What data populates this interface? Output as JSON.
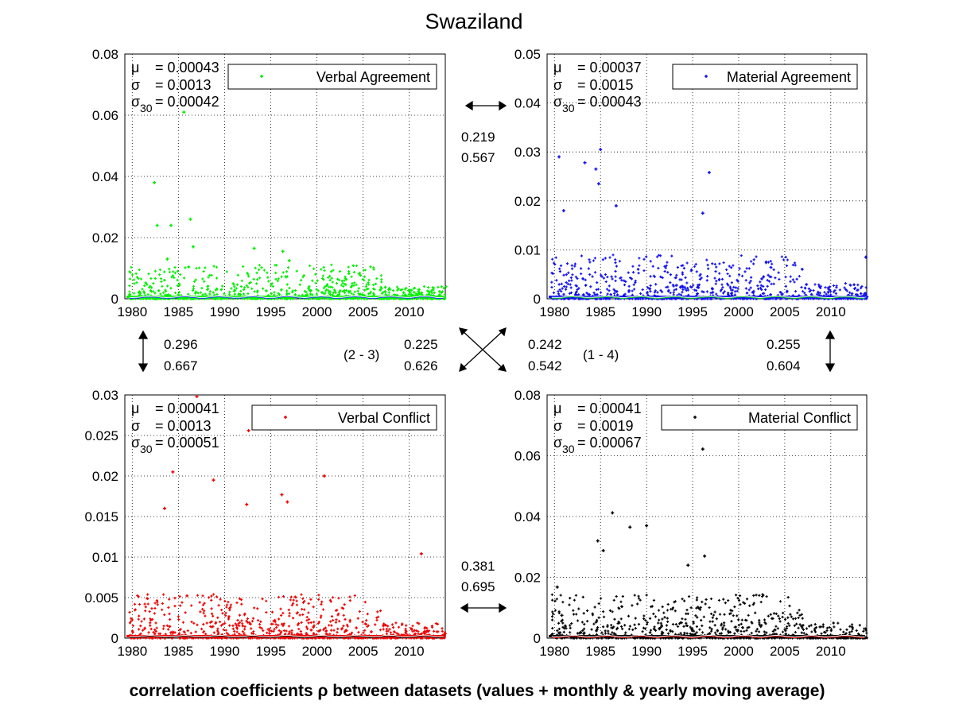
{
  "title": "Swaziland",
  "footer": "correlation coefficients ρ between datasets (values + monthly & yearly moving average)",
  "chart_data": [
    {
      "type": "scatter",
      "legend": "Verbal Agreement",
      "color": "#00ee00",
      "trend_color": "#1f3cff",
      "xticks": [
        "1980",
        "1985",
        "1990",
        "1995",
        "2000",
        "2005",
        "2010"
      ],
      "ylim": [
        0,
        0.08
      ],
      "yticks": [
        "0",
        "0.02",
        "0.04",
        "0.06",
        "0.08"
      ],
      "stats": {
        "mu_label": "μ",
        "mu": "= 0.00043",
        "sigma_label": "σ",
        "sigma": "= 0.0013",
        "sigma30_label": "σ",
        "sigma30_sub": "30",
        "sigma30": "= 0.00042"
      },
      "notable_points": [
        {
          "x": 1985.6,
          "y": 0.061
        },
        {
          "x": 1982.4,
          "y": 0.038
        },
        {
          "x": 1986.3,
          "y": 0.026
        },
        {
          "x": 1984.2,
          "y": 0.024
        },
        {
          "x": 1982.7,
          "y": 0.024
        },
        {
          "x": 1986.6,
          "y": 0.017
        },
        {
          "x": 1993.2,
          "y": 0.0165
        },
        {
          "x": 1996.3,
          "y": 0.0155
        },
        {
          "x": 1997.0,
          "y": 0.0125
        },
        {
          "x": 1983.8,
          "y": 0.013
        }
      ]
    },
    {
      "type": "scatter",
      "legend": "Material Agreement",
      "color": "#1010ee",
      "trend_color": "#00dd00",
      "xticks": [
        "1980",
        "1985",
        "1990",
        "1995",
        "2000",
        "2005",
        "2010"
      ],
      "ylim": [
        0,
        0.05
      ],
      "yticks": [
        "0",
        "0.01",
        "0.02",
        "0.03",
        "0.04",
        "0.05"
      ],
      "stats": {
        "mu_label": "μ",
        "mu": "= 0.00037",
        "sigma_label": "σ",
        "sigma": "= 0.0015",
        "sigma30_label": "σ",
        "sigma30_sub": "30",
        "sigma30": "= 0.00043"
      },
      "notable_points": [
        {
          "x": 1985.0,
          "y": 0.0305
        },
        {
          "x": 1980.5,
          "y": 0.029
        },
        {
          "x": 1983.3,
          "y": 0.0278
        },
        {
          "x": 1984.5,
          "y": 0.0265
        },
        {
          "x": 1996.8,
          "y": 0.0258
        },
        {
          "x": 1984.8,
          "y": 0.0235
        },
        {
          "x": 1986.7,
          "y": 0.019
        },
        {
          "x": 1981.0,
          "y": 0.018
        },
        {
          "x": 1996.1,
          "y": 0.0175
        },
        {
          "x": 2013.8,
          "y": 0.0085
        }
      ]
    },
    {
      "type": "scatter",
      "legend": "Verbal Conflict",
      "color": "#ee0000",
      "trend_color": "#000000",
      "xticks": [
        "1980",
        "1985",
        "1990",
        "1995",
        "2000",
        "2005",
        "2010"
      ],
      "ylim": [
        0,
        0.03
      ],
      "yticks": [
        "0",
        "0.005",
        "0.01",
        "0.015",
        "0.02",
        "0.025",
        "0.03"
      ],
      "stats": {
        "mu_label": "μ",
        "mu": "= 0.00041",
        "sigma_label": "σ",
        "sigma": "= 0.0013",
        "sigma30_label": "σ",
        "sigma30_sub": "30",
        "sigma30": "= 0.00051"
      },
      "notable_points": [
        {
          "x": 1987.0,
          "y": 0.0298
        },
        {
          "x": 1992.6,
          "y": 0.0256
        },
        {
          "x": 1984.4,
          "y": 0.0205
        },
        {
          "x": 2000.8,
          "y": 0.02
        },
        {
          "x": 1988.8,
          "y": 0.0195
        },
        {
          "x": 1996.2,
          "y": 0.0177
        },
        {
          "x": 1996.8,
          "y": 0.0168
        },
        {
          "x": 1992.4,
          "y": 0.0165
        },
        {
          "x": 1983.5,
          "y": 0.016
        },
        {
          "x": 2011.3,
          "y": 0.0104
        }
      ]
    },
    {
      "type": "scatter",
      "legend": "Material Conflict",
      "color": "#000000",
      "trend_color": "#ee0000",
      "xticks": [
        "1980",
        "1985",
        "1990",
        "1995",
        "2000",
        "2005",
        "2010"
      ],
      "ylim": [
        0,
        0.08
      ],
      "yticks": [
        "0",
        "0.02",
        "0.04",
        "0.06",
        "0.08"
      ],
      "stats": {
        "mu_label": "μ",
        "mu": "= 0.00041",
        "sigma_label": "σ",
        "sigma": "= 0.0019",
        "sigma30_label": "σ",
        "sigma30_sub": "30",
        "sigma30": "= 0.00067"
      },
      "notable_points": [
        {
          "x": 1996.1,
          "y": 0.0622
        },
        {
          "x": 1986.3,
          "y": 0.0412
        },
        {
          "x": 1988.2,
          "y": 0.0365
        },
        {
          "x": 1990.0,
          "y": 0.037
        },
        {
          "x": 1984.7,
          "y": 0.032
        },
        {
          "x": 1985.3,
          "y": 0.0288
        },
        {
          "x": 1996.3,
          "y": 0.027
        },
        {
          "x": 1994.5,
          "y": 0.024
        },
        {
          "x": 1980.3,
          "y": 0.0168
        },
        {
          "x": 1980.8,
          "y": 0.0075
        }
      ]
    }
  ],
  "correlations": {
    "top": [
      "0.219",
      "0.567"
    ],
    "left": [
      "0.296",
      "0.667"
    ],
    "right": [
      "0.255",
      "0.604"
    ],
    "diag_23": [
      "0.225",
      "0.626"
    ],
    "diag_14": [
      "0.242",
      "0.542"
    ],
    "bottom": [
      "0.381",
      "0.695"
    ],
    "label_23": "(2 - 3)",
    "label_14": "(1 - 4)"
  }
}
